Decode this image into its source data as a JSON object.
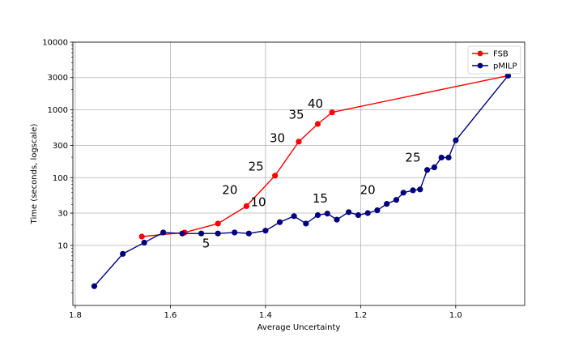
{
  "chart_data": {
    "type": "line",
    "title": "",
    "xlabel": "Average Uncertainty",
    "ylabel": "Time (seconds, logscale)",
    "x_inverted": true,
    "xlim": [
      1.805,
      0.855
    ],
    "ylim": [
      1.3,
      10000
    ],
    "y_scale": "log",
    "grid": true,
    "legend_position": "top-right",
    "x_ticks": [
      {
        "value": 1.8,
        "label": "1.8"
      },
      {
        "value": 1.6,
        "label": "1.6"
      },
      {
        "value": 1.4,
        "label": "1.4"
      },
      {
        "value": 1.2,
        "label": "1.2"
      },
      {
        "value": 1.0,
        "label": "1.0"
      }
    ],
    "y_ticks": [
      {
        "value": 10,
        "label": "10"
      },
      {
        "value": 30,
        "label": "30"
      },
      {
        "value": 100,
        "label": "100"
      },
      {
        "value": 300,
        "label": "300"
      },
      {
        "value": 1000,
        "label": "1000"
      },
      {
        "value": 3000,
        "label": "3000"
      },
      {
        "value": 10000,
        "label": "10000"
      }
    ],
    "series": [
      {
        "name": "FSB",
        "color": "#ff0000",
        "points": [
          {
            "x": 1.66,
            "y": 13.5
          },
          {
            "x": 1.57,
            "y": 15.5
          },
          {
            "x": 1.5,
            "y": 21
          },
          {
            "x": 1.44,
            "y": 38
          },
          {
            "x": 1.38,
            "y": 107
          },
          {
            "x": 1.33,
            "y": 340
          },
          {
            "x": 1.29,
            "y": 620
          },
          {
            "x": 1.26,
            "y": 920
          },
          {
            "x": 0.89,
            "y": 3200
          }
        ]
      },
      {
        "name": "pMILP",
        "color": "#00007f",
        "points": [
          {
            "x": 1.76,
            "y": 2.5
          },
          {
            "x": 1.7,
            "y": 7.5
          },
          {
            "x": 1.655,
            "y": 11
          },
          {
            "x": 1.615,
            "y": 15.5
          },
          {
            "x": 1.575,
            "y": 15
          },
          {
            "x": 1.535,
            "y": 15
          },
          {
            "x": 1.5,
            "y": 15
          },
          {
            "x": 1.465,
            "y": 15.5
          },
          {
            "x": 1.435,
            "y": 15
          },
          {
            "x": 1.4,
            "y": 16.5
          },
          {
            "x": 1.37,
            "y": 22
          },
          {
            "x": 1.34,
            "y": 27
          },
          {
            "x": 1.315,
            "y": 21
          },
          {
            "x": 1.29,
            "y": 28
          },
          {
            "x": 1.27,
            "y": 29.5
          },
          {
            "x": 1.25,
            "y": 24
          },
          {
            "x": 1.225,
            "y": 31
          },
          {
            "x": 1.205,
            "y": 28
          },
          {
            "x": 1.185,
            "y": 30
          },
          {
            "x": 1.165,
            "y": 33
          },
          {
            "x": 1.145,
            "y": 41
          },
          {
            "x": 1.125,
            "y": 47
          },
          {
            "x": 1.11,
            "y": 60
          },
          {
            "x": 1.09,
            "y": 65
          },
          {
            "x": 1.075,
            "y": 67
          },
          {
            "x": 1.06,
            "y": 130
          },
          {
            "x": 1.045,
            "y": 142
          },
          {
            "x": 1.03,
            "y": 198
          },
          {
            "x": 1.015,
            "y": 198
          },
          {
            "x": 1.0,
            "y": 355
          },
          {
            "x": 0.89,
            "y": 3200
          }
        ]
      }
    ],
    "annotations": [
      {
        "text": "20",
        "x": 1.475,
        "y": 57
      },
      {
        "text": "25",
        "x": 1.42,
        "y": 128
      },
      {
        "text": "30",
        "x": 1.375,
        "y": 335
      },
      {
        "text": "35",
        "x": 1.335,
        "y": 745
      },
      {
        "text": "40",
        "x": 1.295,
        "y": 1080
      },
      {
        "text": "10",
        "x": 1.415,
        "y": 38
      },
      {
        "text": "5",
        "x": 1.525,
        "y": 9.3
      },
      {
        "text": "15",
        "x": 1.285,
        "y": 43
      },
      {
        "text": "20",
        "x": 1.185,
        "y": 57
      },
      {
        "text": "25",
        "x": 1.09,
        "y": 172
      }
    ]
  }
}
